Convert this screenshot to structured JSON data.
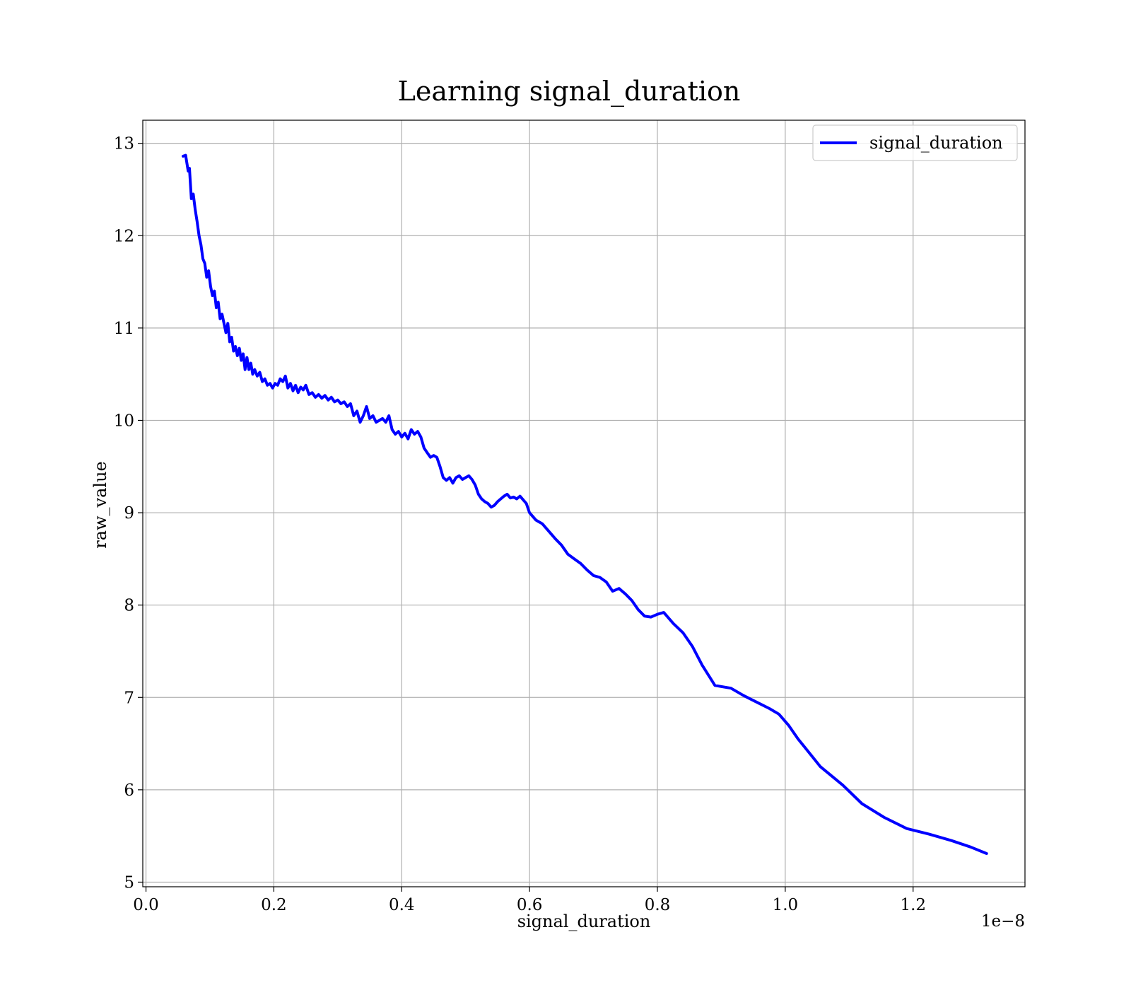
{
  "chart_data": {
    "type": "line",
    "title": "Learning signal_duration",
    "xlabel": "signal_duration",
    "ylabel": "raw_value",
    "x_offset_label": "1e−8",
    "xlim": [
      -0.005,
      1.375
    ],
    "ylim": [
      4.95,
      13.25
    ],
    "x_ticks": [
      0.0,
      0.2,
      0.4,
      0.6,
      0.8,
      1.0,
      1.2
    ],
    "x_tick_labels": [
      "0.0",
      "0.2",
      "0.4",
      "0.6",
      "0.8",
      "1.0",
      "1.2"
    ],
    "y_ticks": [
      5,
      6,
      7,
      8,
      9,
      10,
      11,
      12,
      13
    ],
    "y_tick_labels": [
      "5",
      "6",
      "7",
      "8",
      "9",
      "10",
      "11",
      "12",
      "13"
    ],
    "grid": true,
    "legend_position": "top-right",
    "series": [
      {
        "name": "signal_duration",
        "color": "#0000ff",
        "x": [
          0.058,
          0.062,
          0.066,
          0.068,
          0.071,
          0.074,
          0.077,
          0.08,
          0.083,
          0.086,
          0.089,
          0.092,
          0.095,
          0.098,
          0.101,
          0.104,
          0.107,
          0.11,
          0.113,
          0.116,
          0.119,
          0.122,
          0.125,
          0.128,
          0.131,
          0.134,
          0.137,
          0.14,
          0.143,
          0.146,
          0.149,
          0.152,
          0.155,
          0.158,
          0.161,
          0.164,
          0.167,
          0.17,
          0.174,
          0.178,
          0.182,
          0.186,
          0.19,
          0.194,
          0.198,
          0.202,
          0.206,
          0.21,
          0.214,
          0.218,
          0.222,
          0.226,
          0.23,
          0.234,
          0.238,
          0.242,
          0.246,
          0.25,
          0.255,
          0.26,
          0.265,
          0.27,
          0.275,
          0.28,
          0.285,
          0.29,
          0.295,
          0.3,
          0.305,
          0.31,
          0.315,
          0.32,
          0.325,
          0.33,
          0.335,
          0.34,
          0.345,
          0.35,
          0.355,
          0.36,
          0.365,
          0.37,
          0.375,
          0.38,
          0.385,
          0.39,
          0.395,
          0.4,
          0.405,
          0.41,
          0.415,
          0.42,
          0.425,
          0.43,
          0.435,
          0.44,
          0.445,
          0.45,
          0.455,
          0.46,
          0.465,
          0.47,
          0.475,
          0.48,
          0.485,
          0.49,
          0.495,
          0.5,
          0.505,
          0.51,
          0.515,
          0.52,
          0.525,
          0.53,
          0.535,
          0.54,
          0.545,
          0.55,
          0.555,
          0.56,
          0.565,
          0.57,
          0.575,
          0.58,
          0.585,
          0.59,
          0.595,
          0.6,
          0.61,
          0.62,
          0.63,
          0.64,
          0.65,
          0.66,
          0.67,
          0.68,
          0.69,
          0.7,
          0.71,
          0.72,
          0.73,
          0.74,
          0.75,
          0.76,
          0.77,
          0.78,
          0.79,
          0.8,
          0.81,
          0.825,
          0.84,
          0.855,
          0.87,
          0.89,
          0.915,
          0.935,
          0.955,
          0.975,
          0.99,
          1.005,
          1.02,
          1.055,
          1.09,
          1.12,
          1.155,
          1.19,
          1.225,
          1.26,
          1.29,
          1.315
        ],
        "y": [
          12.86,
          12.87,
          12.7,
          12.73,
          12.4,
          12.45,
          12.28,
          12.15,
          12.0,
          11.9,
          11.75,
          11.7,
          11.55,
          11.62,
          11.45,
          11.35,
          11.4,
          11.22,
          11.28,
          11.1,
          11.15,
          11.05,
          10.95,
          11.05,
          10.85,
          10.9,
          10.75,
          10.8,
          10.7,
          10.78,
          10.65,
          10.72,
          10.55,
          10.68,
          10.55,
          10.62,
          10.5,
          10.55,
          10.48,
          10.52,
          10.42,
          10.45,
          10.38,
          10.4,
          10.35,
          10.4,
          10.38,
          10.45,
          10.42,
          10.48,
          10.35,
          10.4,
          10.32,
          10.38,
          10.3,
          10.36,
          10.33,
          10.38,
          10.28,
          10.3,
          10.25,
          10.28,
          10.24,
          10.27,
          10.22,
          10.25,
          10.2,
          10.22,
          10.18,
          10.2,
          10.15,
          10.18,
          10.05,
          10.1,
          9.98,
          10.05,
          10.15,
          10.02,
          10.05,
          9.98,
          10.0,
          10.02,
          9.98,
          10.05,
          9.9,
          9.85,
          9.88,
          9.82,
          9.86,
          9.8,
          9.9,
          9.85,
          9.88,
          9.82,
          9.7,
          9.65,
          9.6,
          9.62,
          9.6,
          9.5,
          9.38,
          9.35,
          9.38,
          9.32,
          9.38,
          9.4,
          9.36,
          9.38,
          9.4,
          9.36,
          9.3,
          9.2,
          9.15,
          9.12,
          9.1,
          9.06,
          9.08,
          9.12,
          9.15,
          9.18,
          9.2,
          9.16,
          9.17,
          9.15,
          9.18,
          9.14,
          9.1,
          9.0,
          8.92,
          8.88,
          8.8,
          8.72,
          8.65,
          8.55,
          8.5,
          8.45,
          8.38,
          8.32,
          8.3,
          8.25,
          8.15,
          8.18,
          8.12,
          8.05,
          7.95,
          7.88,
          7.87,
          7.9,
          7.92,
          7.8,
          7.7,
          7.55,
          7.35,
          7.13,
          7.1,
          7.02,
          6.95,
          6.88,
          6.82,
          6.7,
          6.55,
          6.25,
          6.05,
          5.85,
          5.7,
          5.58,
          5.52,
          5.45,
          5.38,
          5.31
        ]
      }
    ]
  }
}
